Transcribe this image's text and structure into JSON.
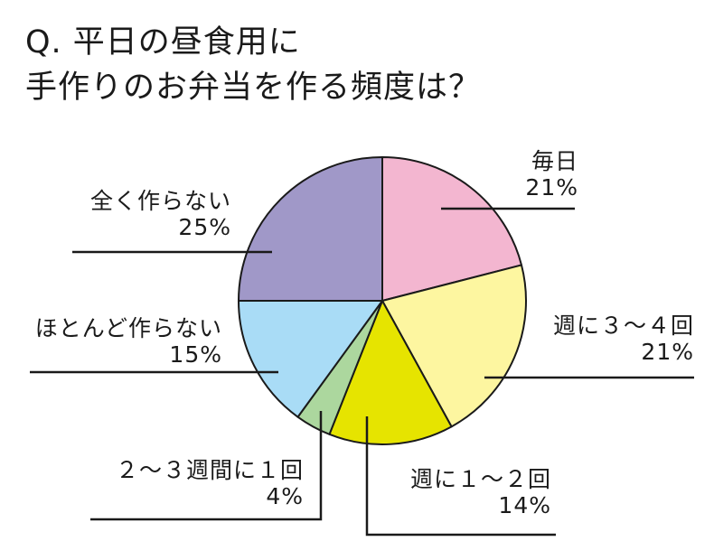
{
  "chart_data": {
    "type": "pie",
    "title": [
      "Q. 平日の昼食用に",
      "手作りのお弁当を作る頻度は？"
    ],
    "slices": [
      {
        "label": "毎日",
        "value": 21,
        "value_text": "21%",
        "color": "#f3b6d0"
      },
      {
        "label": "週に３～４回",
        "value": 21,
        "value_text": "21%",
        "color": "#fdf6a0"
      },
      {
        "label": "週に１～２回",
        "value": 14,
        "value_text": "14%",
        "color": "#e6e400"
      },
      {
        "label": "２～３週間に１回",
        "value": 4,
        "value_text": "4%",
        "color": "#acd79e"
      },
      {
        "label": "ほとんど作らない",
        "value": 15,
        "value_text": "15%",
        "color": "#a9dcf6"
      },
      {
        "label": "全く作らない",
        "value": 25,
        "value_text": "25%",
        "color": "#a098c8"
      }
    ]
  }
}
